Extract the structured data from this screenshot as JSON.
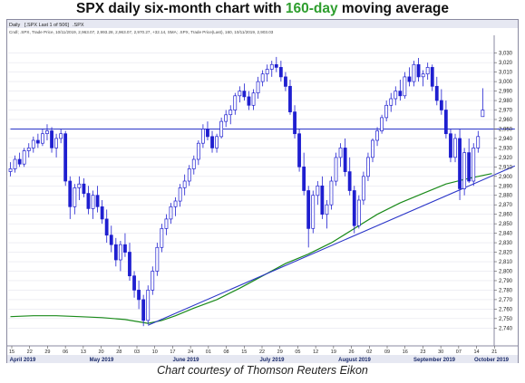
{
  "title": {
    "prefix": "SPX daily six-month chart with ",
    "highlight": "160-day",
    "suffix": " moving average"
  },
  "caption": "Chart courtesy of Thomson Reuters Eikon",
  "colors": {
    "accent_green": "#2e9e2e",
    "candle_blue": "#1f1fd0",
    "ma_green": "#1a8a1a",
    "trend_blue": "#2a35c8",
    "grid": "#e4e4ee"
  },
  "chart_data": {
    "type": "candlestick",
    "header": {
      "tab": "Daily",
      "tab_detail": "[.SPX Last 1 of 506]",
      "ticker": ".SPX",
      "legend": "Cndl; .SPX, Trade Price, 10/11/2019, 2,963.07, 2,993.28, 2,963.07, 2,970.27, +32.14, SMA; .SPX, Trade Price(Last), 160, 10/11/2019, 2,903.03"
    },
    "ylim": [
      2725,
      3045
    ],
    "yticks": [
      2740,
      2750,
      2760,
      2770,
      2780,
      2790,
      2800,
      2810,
      2820,
      2830,
      2840,
      2850,
      2860,
      2870,
      2880,
      2890,
      2900,
      2910,
      2920,
      2930,
      2940,
      2950,
      2960,
      2970,
      2980,
      2990,
      3000,
      3010,
      3020,
      3030
    ],
    "grid": true,
    "x_day_labels": [
      "15",
      "22",
      "29",
      "06",
      "13",
      "20",
      "28",
      "03",
      "10",
      "17",
      "24",
      "01",
      "08",
      "15",
      "22",
      "29",
      "05",
      "12",
      "19",
      "26",
      "02",
      "09",
      "16",
      "23",
      "30",
      "07",
      "14",
      "21"
    ],
    "x_month_labels": [
      "April 2019",
      "May 2019",
      "June 2019",
      "July 2019",
      "August 2019",
      "September 2019",
      "October 2019"
    ],
    "candles": [
      [
        2905,
        2915,
        2900,
        2908
      ],
      [
        2908,
        2922,
        2904,
        2918
      ],
      [
        2918,
        2925,
        2910,
        2913
      ],
      [
        2913,
        2930,
        2910,
        2927
      ],
      [
        2927,
        2935,
        2920,
        2930
      ],
      [
        2930,
        2942,
        2925,
        2938
      ],
      [
        2938,
        2945,
        2930,
        2935
      ],
      [
        2935,
        2950,
        2932,
        2945
      ],
      [
        2945,
        2955,
        2938,
        2948
      ],
      [
        2948,
        2952,
        2925,
        2930
      ],
      [
        2930,
        2945,
        2920,
        2940
      ],
      [
        2940,
        2950,
        2935,
        2945
      ],
      [
        2945,
        2948,
        2890,
        2895
      ],
      [
        2895,
        2900,
        2855,
        2868
      ],
      [
        2868,
        2892,
        2860,
        2888
      ],
      [
        2888,
        2900,
        2875,
        2892
      ],
      [
        2892,
        2898,
        2878,
        2882
      ],
      [
        2882,
        2890,
        2860,
        2866
      ],
      [
        2866,
        2885,
        2855,
        2880
      ],
      [
        2880,
        2890,
        2862,
        2868
      ],
      [
        2868,
        2875,
        2850,
        2855
      ],
      [
        2855,
        2865,
        2830,
        2838
      ],
      [
        2838,
        2848,
        2820,
        2828
      ],
      [
        2828,
        2835,
        2805,
        2812
      ],
      [
        2812,
        2832,
        2800,
        2828
      ],
      [
        2828,
        2840,
        2815,
        2820
      ],
      [
        2820,
        2830,
        2790,
        2795
      ],
      [
        2795,
        2800,
        2772,
        2780
      ],
      [
        2780,
        2790,
        2760,
        2770
      ],
      [
        2770,
        2775,
        2742,
        2748
      ],
      [
        2748,
        2785,
        2744,
        2780
      ],
      [
        2780,
        2805,
        2775,
        2800
      ],
      [
        2800,
        2830,
        2795,
        2825
      ],
      [
        2825,
        2850,
        2820,
        2845
      ],
      [
        2845,
        2860,
        2838,
        2855
      ],
      [
        2855,
        2872,
        2850,
        2868
      ],
      [
        2868,
        2878,
        2858,
        2874
      ],
      [
        2874,
        2892,
        2868,
        2888
      ],
      [
        2888,
        2902,
        2880,
        2895
      ],
      [
        2895,
        2912,
        2890,
        2908
      ],
      [
        2908,
        2922,
        2902,
        2918
      ],
      [
        2918,
        2938,
        2912,
        2935
      ],
      [
        2935,
        2955,
        2930,
        2950
      ],
      [
        2950,
        2958,
        2938,
        2942
      ],
      [
        2942,
        2948,
        2925,
        2930
      ],
      [
        2930,
        2945,
        2925,
        2942
      ],
      [
        2942,
        2962,
        2940,
        2958
      ],
      [
        2958,
        2970,
        2952,
        2965
      ],
      [
        2965,
        2975,
        2955,
        2970
      ],
      [
        2970,
        2988,
        2965,
        2985
      ],
      [
        2985,
        2995,
        2978,
        2990
      ],
      [
        2990,
        2998,
        2980,
        2984
      ],
      [
        2984,
        2990,
        2970,
        2975
      ],
      [
        2975,
        2992,
        2970,
        2988
      ],
      [
        2988,
        3005,
        2982,
        3000
      ],
      [
        3000,
        3012,
        2995,
        3008
      ],
      [
        3008,
        3018,
        3000,
        3013
      ],
      [
        3013,
        3022,
        3005,
        3018
      ],
      [
        3018,
        3026,
        3010,
        3015
      ],
      [
        3015,
        3022,
        3000,
        3005
      ],
      [
        3005,
        3010,
        2990,
        2995
      ],
      [
        2995,
        3002,
        2965,
        2968
      ],
      [
        2968,
        2975,
        2940,
        2945
      ],
      [
        2945,
        2950,
        2905,
        2910
      ],
      [
        2910,
        2925,
        2880,
        2885
      ],
      [
        2885,
        2890,
        2825,
        2845
      ],
      [
        2845,
        2885,
        2840,
        2880
      ],
      [
        2880,
        2895,
        2870,
        2890
      ],
      [
        2890,
        2900,
        2855,
        2860
      ],
      [
        2860,
        2875,
        2845,
        2870
      ],
      [
        2870,
        2900,
        2865,
        2895
      ],
      [
        2895,
        2925,
        2890,
        2920
      ],
      [
        2920,
        2935,
        2910,
        2930
      ],
      [
        2930,
        2940,
        2900,
        2905
      ],
      [
        2905,
        2920,
        2880,
        2885
      ],
      [
        2885,
        2890,
        2840,
        2848
      ],
      [
        2848,
        2880,
        2845,
        2875
      ],
      [
        2875,
        2905,
        2870,
        2900
      ],
      [
        2900,
        2925,
        2895,
        2920
      ],
      [
        2920,
        2940,
        2915,
        2938
      ],
      [
        2938,
        2952,
        2932,
        2948
      ],
      [
        2948,
        2965,
        2945,
        2962
      ],
      [
        2962,
        2980,
        2958,
        2975
      ],
      [
        2975,
        2988,
        2968,
        2982
      ],
      [
        2982,
        2995,
        2975,
        2990
      ],
      [
        2990,
        3002,
        2980,
        2985
      ],
      [
        2985,
        3010,
        2982,
        3005
      ],
      [
        3005,
        3015,
        2995,
        3000
      ],
      [
        3000,
        3022,
        2995,
        3018
      ],
      [
        3018,
        3025,
        3000,
        3005
      ],
      [
        3005,
        3012,
        2995,
        3008
      ],
      [
        3008,
        3020,
        3002,
        3015
      ],
      [
        3015,
        3018,
        2990,
        2995
      ],
      [
        2995,
        3005,
        2975,
        2980
      ],
      [
        2980,
        2992,
        2965,
        2970
      ],
      [
        2970,
        2980,
        2940,
        2945
      ],
      [
        2945,
        2950,
        2915,
        2920
      ],
      [
        2920,
        2945,
        2915,
        2940
      ],
      [
        2940,
        2950,
        2875,
        2887
      ],
      [
        2887,
        2930,
        2880,
        2925
      ],
      [
        2925,
        2940,
        2893,
        2895
      ],
      [
        2895,
        2935,
        2890,
        2930
      ],
      [
        2930,
        2948,
        2925,
        2942
      ],
      [
        2963,
        2993,
        2963,
        2970
      ]
    ],
    "series": [
      {
        "name": "SMA 160",
        "color": "#1a8a1a",
        "values": [
          [
            0,
            2752
          ],
          [
            5,
            2753
          ],
          [
            10,
            2753
          ],
          [
            15,
            2752
          ],
          [
            20,
            2751
          ],
          [
            25,
            2749
          ],
          [
            30,
            2745
          ],
          [
            33,
            2748
          ],
          [
            36,
            2753
          ],
          [
            40,
            2761
          ],
          [
            45,
            2770
          ],
          [
            50,
            2782
          ],
          [
            55,
            2795
          ],
          [
            60,
            2808
          ],
          [
            65,
            2818
          ],
          [
            70,
            2830
          ],
          [
            75,
            2845
          ],
          [
            80,
            2860
          ],
          [
            85,
            2872
          ],
          [
            90,
            2882
          ],
          [
            95,
            2892
          ],
          [
            100,
            2898
          ],
          [
            105,
            2903
          ]
        ]
      },
      {
        "name": "Trendline",
        "color": "#2a35c8",
        "values": [
          [
            30,
            2743
          ],
          [
            110,
            2911
          ]
        ]
      },
      {
        "name": "Horizontal level",
        "color": "#2a35c8",
        "values": [
          [
            0,
            2950
          ],
          [
            110,
            2950
          ]
        ]
      }
    ]
  }
}
